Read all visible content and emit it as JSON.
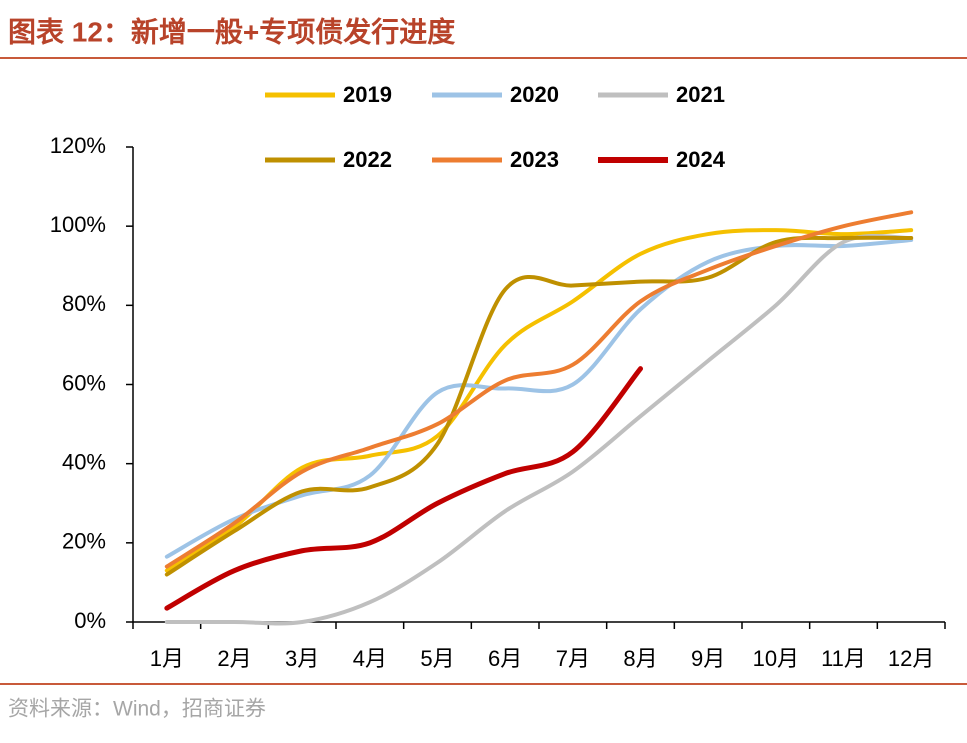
{
  "chart_data": {
    "type": "line",
    "title": "图表 12：新增一般+专项债发行进度",
    "source": "资料来源：Wind，招商证券",
    "categories": [
      "1月",
      "2月",
      "3月",
      "4月",
      "5月",
      "6月",
      "7月",
      "8月",
      "9月",
      "10月",
      "11月",
      "12月"
    ],
    "series": [
      {
        "name": "2019",
        "color": "#f5c000",
        "values": [
          13,
          24,
          39,
          42,
          47,
          70,
          81,
          93,
          98,
          99,
          98,
          99
        ]
      },
      {
        "name": "2020",
        "color": "#9dc3e6",
        "values": [
          16.5,
          26,
          32,
          37,
          58,
          59,
          60,
          79,
          91,
          95,
          95,
          96.5
        ]
      },
      {
        "name": "2021",
        "color": "#bfbfbf",
        "values": [
          0,
          0,
          0,
          5,
          15,
          28,
          38,
          52,
          66,
          80,
          96,
          97
        ]
      },
      {
        "name": "2022",
        "color": "#bf9000",
        "values": [
          12,
          23,
          33,
          34,
          45,
          84,
          85,
          86,
          87,
          96,
          97,
          97
        ]
      },
      {
        "name": "2023",
        "color": "#ed7d31",
        "values": [
          14,
          25,
          38,
          44,
          50,
          61,
          65,
          81,
          89,
          95,
          100,
          103.5
        ]
      },
      {
        "name": "2024",
        "color": "#c00000",
        "values": [
          3.5,
          13,
          18,
          20,
          30,
          37.5,
          43,
          64,
          null,
          null,
          null,
          null
        ]
      }
    ],
    "ylim": [
      0,
      120
    ],
    "yticks": [
      {
        "value": 0,
        "label": "0%"
      },
      {
        "value": 20,
        "label": "20%"
      },
      {
        "value": 40,
        "label": "40%"
      },
      {
        "value": 60,
        "label": "60%"
      },
      {
        "value": 80,
        "label": "80%"
      },
      {
        "value": 100,
        "label": "100%"
      },
      {
        "value": 120,
        "label": "120%"
      }
    ],
    "grid": false
  }
}
